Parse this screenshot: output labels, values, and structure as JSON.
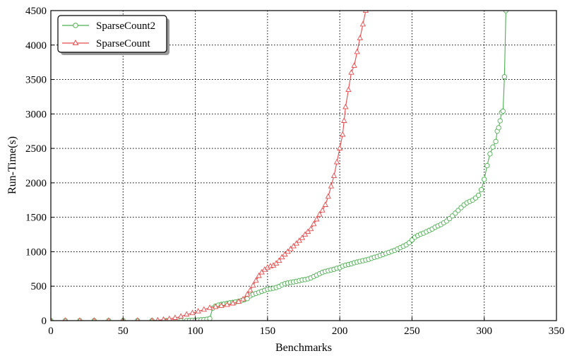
{
  "chart_data": {
    "type": "line",
    "title": "",
    "xlabel": "Benchmarks",
    "ylabel": "Run-Time(s)",
    "xlim": [
      0,
      350
    ],
    "ylim": [
      0,
      4500
    ],
    "xticks": [
      0,
      50,
      100,
      150,
      200,
      250,
      300,
      350
    ],
    "yticks": [
      0,
      500,
      1000,
      1500,
      2000,
      2500,
      3000,
      3500,
      4000,
      4500
    ],
    "grid": true,
    "grid_style": "dotted",
    "legend_position": "top-left",
    "series": [
      {
        "name": "SparseCount2",
        "color": "#4caf50",
        "marker": "circle",
        "points": [
          [
            0,
            0
          ],
          [
            10,
            0
          ],
          [
            20,
            0
          ],
          [
            30,
            0
          ],
          [
            40,
            0
          ],
          [
            50,
            0
          ],
          [
            60,
            0
          ],
          [
            70,
            0
          ],
          [
            80,
            0
          ],
          [
            90,
            0
          ],
          [
            94,
            1
          ],
          [
            96,
            3
          ],
          [
            98,
            5
          ],
          [
            100,
            7
          ],
          [
            102,
            9
          ],
          [
            104,
            12
          ],
          [
            106,
            15
          ],
          [
            108,
            20
          ],
          [
            110,
            30
          ],
          [
            112,
            180
          ],
          [
            114,
            210
          ],
          [
            116,
            225
          ],
          [
            118,
            235
          ],
          [
            120,
            242
          ],
          [
            122,
            250
          ],
          [
            124,
            258
          ],
          [
            126,
            265
          ],
          [
            128,
            272
          ],
          [
            130,
            280
          ],
          [
            132,
            290
          ],
          [
            134,
            305
          ],
          [
            136,
            320
          ],
          [
            138,
            360
          ],
          [
            140,
            380
          ],
          [
            142,
            395
          ],
          [
            144,
            410
          ],
          [
            146,
            425
          ],
          [
            148,
            440
          ],
          [
            150,
            455
          ],
          [
            152,
            462
          ],
          [
            154,
            470
          ],
          [
            156,
            480
          ],
          [
            158,
            495
          ],
          [
            160,
            520
          ],
          [
            162,
            535
          ],
          [
            164,
            545
          ],
          [
            166,
            555
          ],
          [
            168,
            562
          ],
          [
            170,
            570
          ],
          [
            172,
            580
          ],
          [
            174,
            590
          ],
          [
            176,
            595
          ],
          [
            178,
            605
          ],
          [
            180,
            620
          ],
          [
            182,
            640
          ],
          [
            184,
            660
          ],
          [
            186,
            680
          ],
          [
            188,
            700
          ],
          [
            190,
            715
          ],
          [
            192,
            725
          ],
          [
            194,
            735
          ],
          [
            196,
            745
          ],
          [
            198,
            760
          ],
          [
            200,
            770
          ],
          [
            202,
            790
          ],
          [
            204,
            805
          ],
          [
            206,
            815
          ],
          [
            208,
            825
          ],
          [
            210,
            840
          ],
          [
            212,
            850
          ],
          [
            214,
            860
          ],
          [
            216,
            870
          ],
          [
            218,
            880
          ],
          [
            220,
            890
          ],
          [
            222,
            905
          ],
          [
            224,
            920
          ],
          [
            226,
            930
          ],
          [
            228,
            945
          ],
          [
            230,
            960
          ],
          [
            232,
            975
          ],
          [
            234,
            990
          ],
          [
            236,
            1005
          ],
          [
            238,
            1020
          ],
          [
            240,
            1040
          ],
          [
            242,
            1060
          ],
          [
            244,
            1080
          ],
          [
            246,
            1100
          ],
          [
            248,
            1130
          ],
          [
            250,
            1170
          ],
          [
            252,
            1210
          ],
          [
            254,
            1235
          ],
          [
            256,
            1255
          ],
          [
            258,
            1270
          ],
          [
            260,
            1290
          ],
          [
            262,
            1310
          ],
          [
            264,
            1330
          ],
          [
            266,
            1355
          ],
          [
            268,
            1375
          ],
          [
            270,
            1395
          ],
          [
            272,
            1420
          ],
          [
            274,
            1445
          ],
          [
            276,
            1480
          ],
          [
            278,
            1520
          ],
          [
            280,
            1560
          ],
          [
            282,
            1600
          ],
          [
            284,
            1640
          ],
          [
            286,
            1680
          ],
          [
            288,
            1710
          ],
          [
            290,
            1730
          ],
          [
            292,
            1750
          ],
          [
            294,
            1780
          ],
          [
            296,
            1820
          ],
          [
            298,
            1900
          ],
          [
            300,
            2050
          ],
          [
            302,
            2250
          ],
          [
            304,
            2420
          ],
          [
            306,
            2520
          ],
          [
            308,
            2600
          ],
          [
            309,
            2750
          ],
          [
            310,
            2800
          ],
          [
            311,
            2900
          ],
          [
            312,
            3020
          ],
          [
            313,
            3040
          ],
          [
            314,
            3540
          ],
          [
            315,
            4500
          ]
        ]
      },
      {
        "name": "SparseCount",
        "color": "#e84a4a",
        "marker": "triangle",
        "points": [
          [
            0,
            0
          ],
          [
            10,
            0
          ],
          [
            20,
            0
          ],
          [
            30,
            0
          ],
          [
            40,
            0
          ],
          [
            50,
            0
          ],
          [
            60,
            0
          ],
          [
            70,
            0
          ],
          [
            74,
            5
          ],
          [
            78,
            15
          ],
          [
            82,
            25
          ],
          [
            86,
            40
          ],
          [
            90,
            60
          ],
          [
            94,
            90
          ],
          [
            98,
            110
          ],
          [
            102,
            135
          ],
          [
            106,
            160
          ],
          [
            110,
            185
          ],
          [
            114,
            200
          ],
          [
            118,
            215
          ],
          [
            122,
            230
          ],
          [
            126,
            250
          ],
          [
            130,
            275
          ],
          [
            133,
            310
          ],
          [
            136,
            380
          ],
          [
            138,
            440
          ],
          [
            140,
            510
          ],
          [
            142,
            580
          ],
          [
            144,
            650
          ],
          [
            146,
            700
          ],
          [
            148,
            740
          ],
          [
            150,
            770
          ],
          [
            152,
            790
          ],
          [
            154,
            800
          ],
          [
            156,
            830
          ],
          [
            158,
            870
          ],
          [
            160,
            920
          ],
          [
            162,
            960
          ],
          [
            164,
            1000
          ],
          [
            166,
            1040
          ],
          [
            168,
            1080
          ],
          [
            170,
            1120
          ],
          [
            172,
            1160
          ],
          [
            174,
            1200
          ],
          [
            176,
            1250
          ],
          [
            178,
            1290
          ],
          [
            180,
            1330
          ],
          [
            182,
            1400
          ],
          [
            184,
            1470
          ],
          [
            186,
            1540
          ],
          [
            188,
            1600
          ],
          [
            190,
            1680
          ],
          [
            192,
            1800
          ],
          [
            194,
            1950
          ],
          [
            196,
            2100
          ],
          [
            198,
            2300
          ],
          [
            200,
            2500
          ],
          [
            202,
            2700
          ],
          [
            203,
            2900
          ],
          [
            204,
            3100
          ],
          [
            206,
            3350
          ],
          [
            208,
            3600
          ],
          [
            210,
            3700
          ],
          [
            212,
            3900
          ],
          [
            214,
            4100
          ],
          [
            216,
            4300
          ],
          [
            218,
            4500
          ]
        ]
      }
    ]
  }
}
